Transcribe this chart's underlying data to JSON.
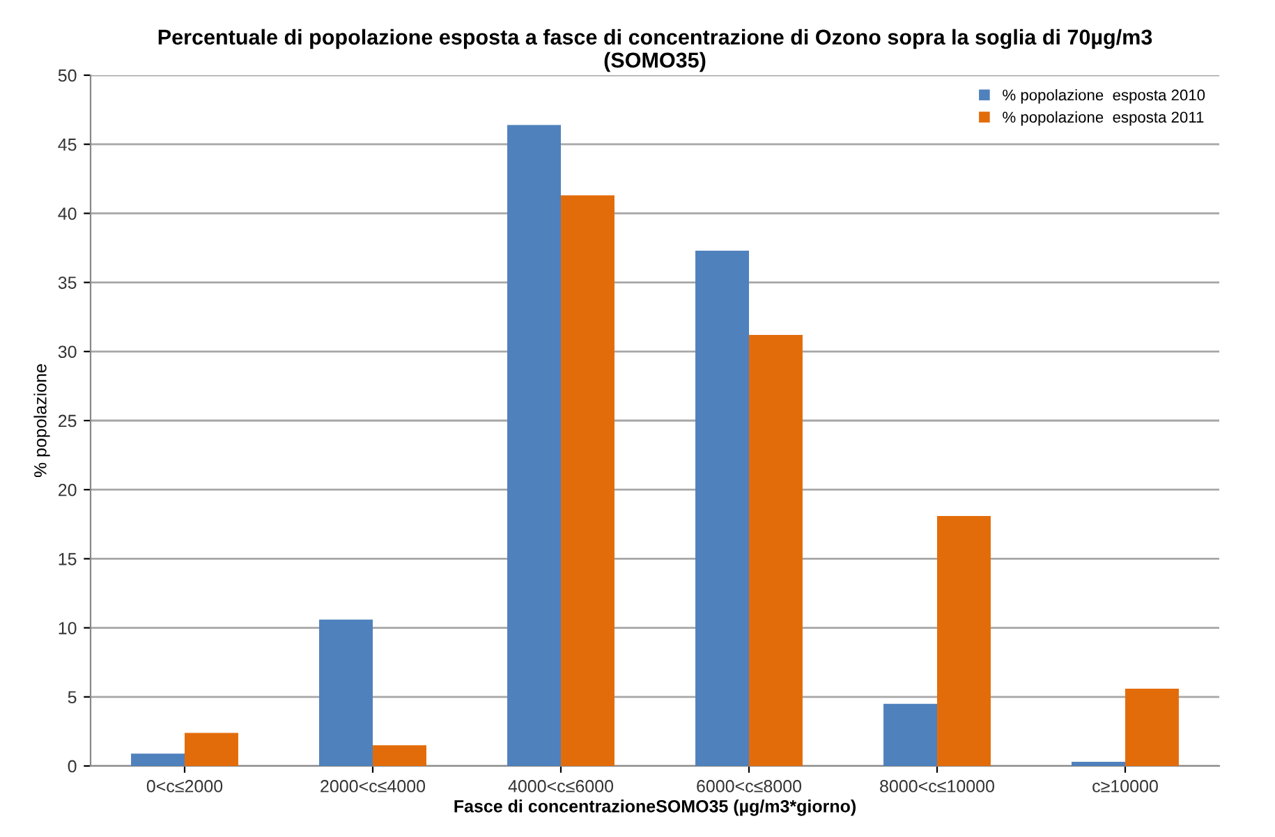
{
  "chart_data": {
    "type": "bar",
    "title": "Percentuale di popolazione esposta a fasce di concentrazione di Ozono sopra la soglia di 70µg/m3\n(SOMO35)",
    "xlabel": "Fasce di concentrazioneSOMO35 (µg/m3*giorno)",
    "ylabel": "% popolazione",
    "categories": [
      "0<c≤2000",
      "2000<c≤4000",
      "4000<c≤6000",
      "6000<c≤8000",
      "8000<c≤10000",
      "c≥10000"
    ],
    "series": [
      {
        "name": "% popolazione  esposta 2010",
        "color": "#4f81bd",
        "values": [
          0.9,
          10.6,
          46.4,
          37.3,
          4.5,
          0.3
        ]
      },
      {
        "name": "% popolazione  esposta 2011",
        "color": "#e36c0a",
        "values": [
          2.4,
          1.5,
          41.3,
          31.2,
          18.1,
          5.6
        ]
      }
    ],
    "ylim": [
      0,
      50
    ],
    "yticks": [
      0,
      5,
      10,
      15,
      20,
      25,
      30,
      35,
      40,
      45,
      50
    ],
    "grid": "y",
    "legend": "top right"
  }
}
